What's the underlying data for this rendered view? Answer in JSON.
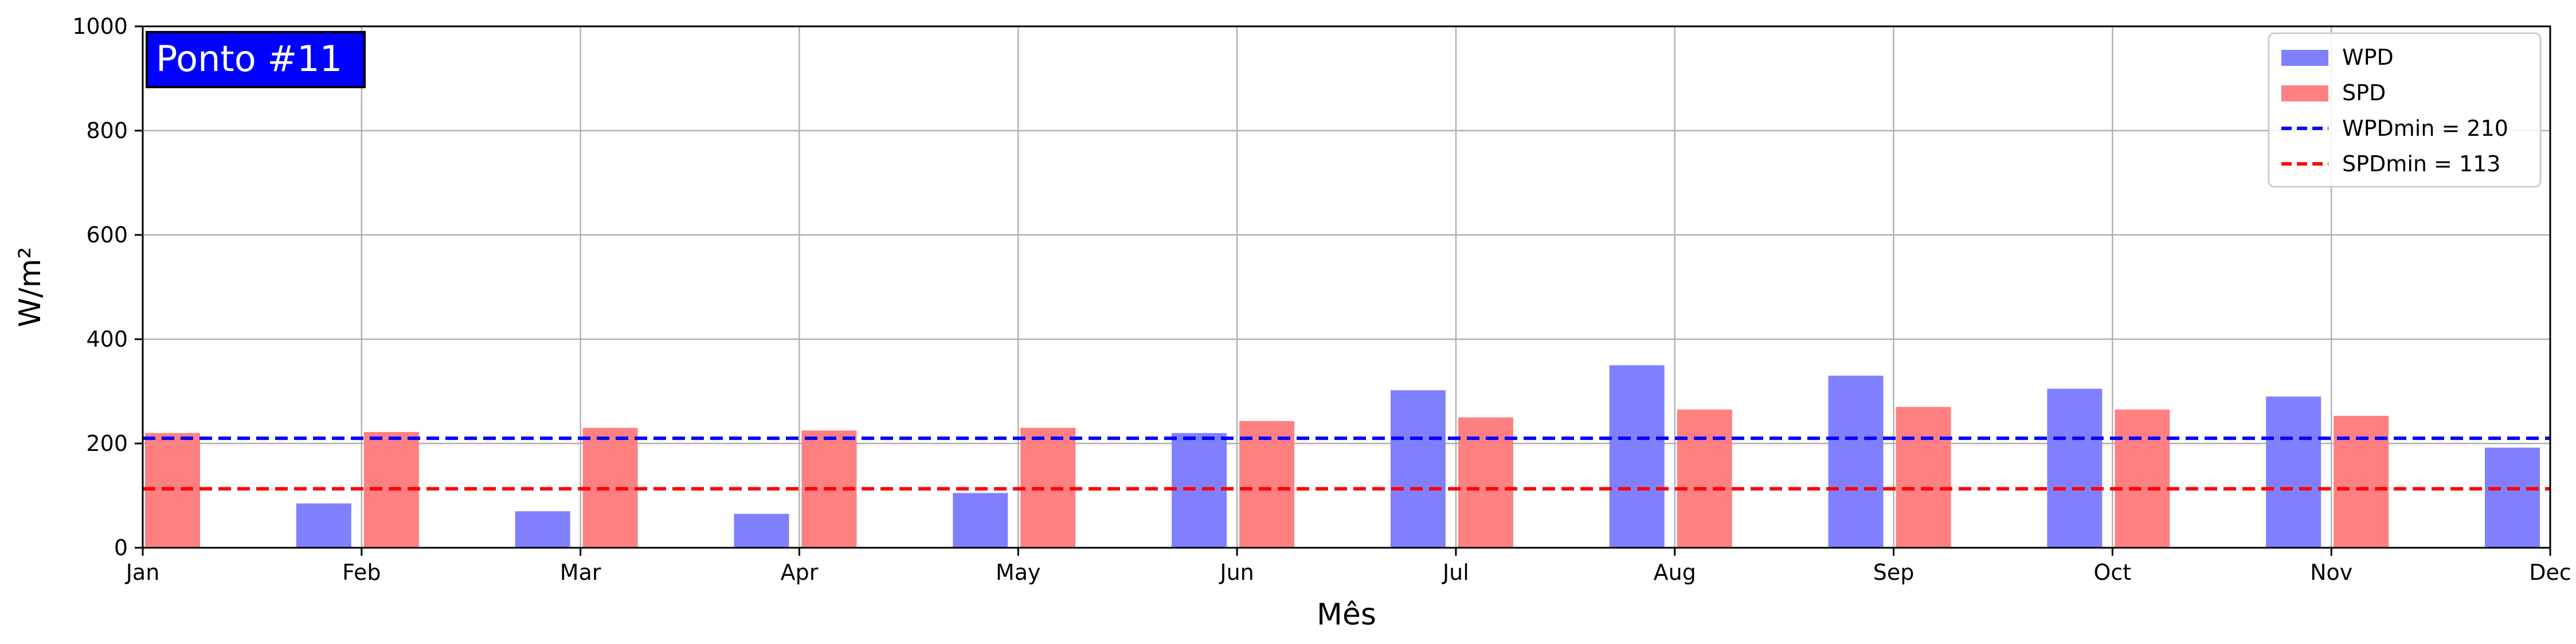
{
  "chart_data": {
    "type": "bar",
    "title": "",
    "panel_label": "Ponto #11",
    "xlabel": "Mês",
    "ylabel": "W/m²",
    "ylim": [
      0,
      1000
    ],
    "yticks": [
      0,
      200,
      400,
      600,
      800,
      1000
    ],
    "x_ticks": [
      "Jan",
      "Feb",
      "Mar",
      "Apr",
      "May",
      "Jun",
      "Jul",
      "Aug",
      "Sep",
      "Oct",
      "Nov",
      "Dec"
    ],
    "grid": true,
    "legend_position": "top-right",
    "series": [
      {
        "name": "WPD",
        "color": "#8080ff",
        "values": [
          null,
          85,
          70,
          65,
          105,
          220,
          302,
          350,
          330,
          305,
          290,
          192
        ]
      },
      {
        "name": "SPD",
        "color": "#ff8080",
        "values": [
          220,
          222,
          230,
          225,
          230,
          243,
          250,
          265,
          270,
          265,
          253,
          null
        ]
      }
    ],
    "reference_lines": [
      {
        "label": "WPDmin = 210",
        "value": 210,
        "color": "#0000ff",
        "style": "dashed"
      },
      {
        "label": "SPDmin = 113",
        "value": 113,
        "color": "#ff0000",
        "style": "dashed"
      }
    ]
  }
}
